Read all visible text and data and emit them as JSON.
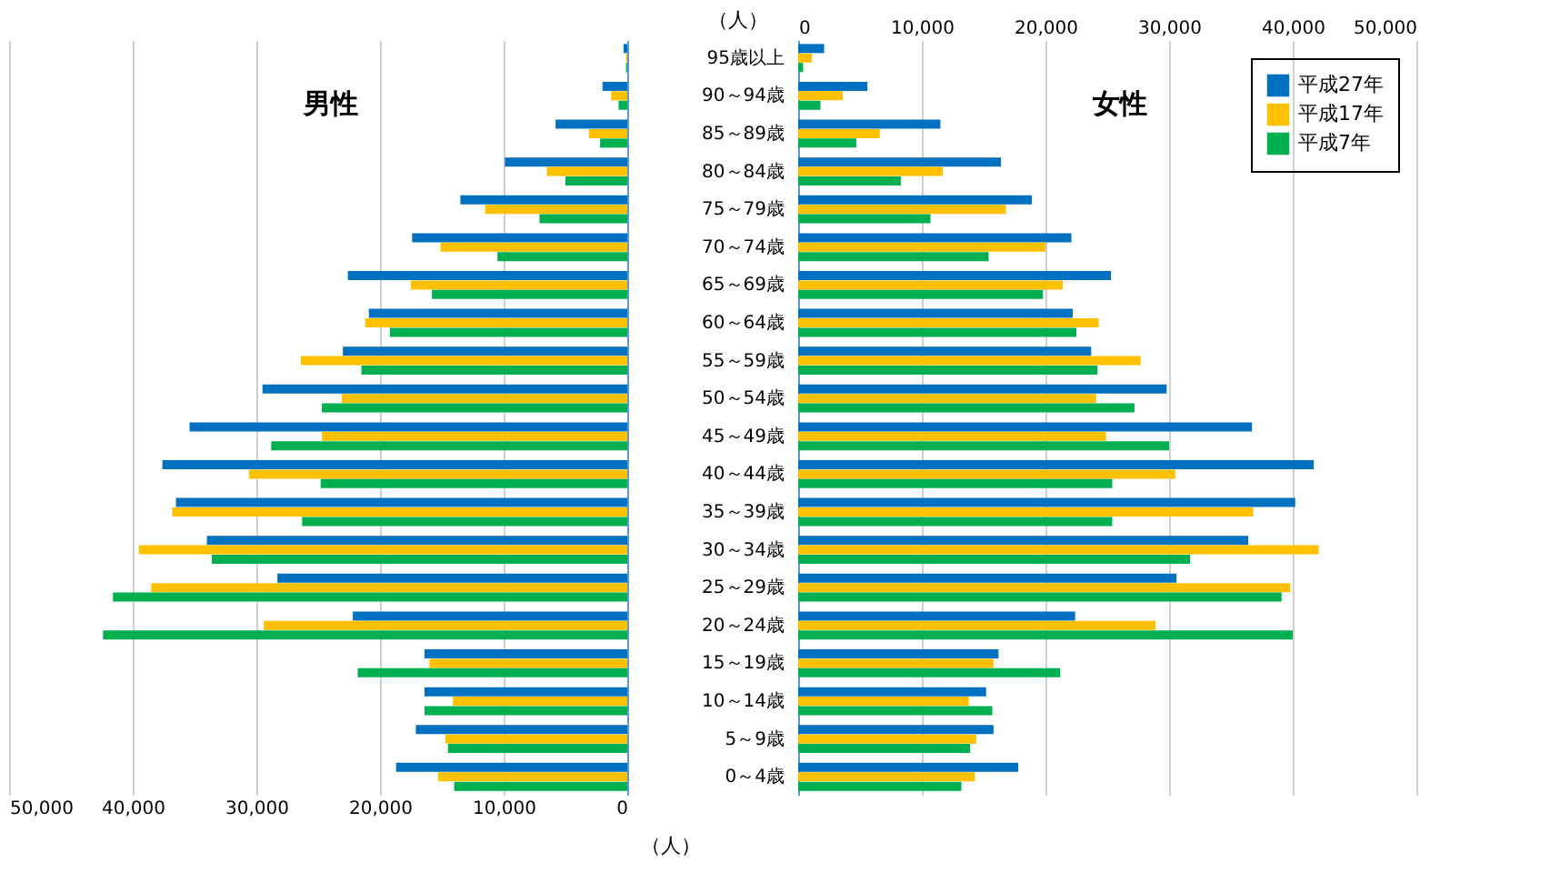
{
  "chart_data": [
    {
      "type": "bar",
      "orientation": "horizontal",
      "title": "男性",
      "xlabel": "（人）",
      "categories": [
        null,
        null,
        null,
        null,
        null,
        null,
        null,
        null,
        null,
        null,
        null,
        null,
        null,
        null,
        null,
        null,
        null,
        null,
        null,
        null
      ],
      "series": [
        {
          "color": "#0070c0",
          "values": [
            300,
            2000,
            5800,
            9900,
            13500,
            17400,
            22600,
            20900,
            23000,
            29500,
            35400,
            37600,
            36500,
            34000,
            28300,
            22200,
            16400,
            16400,
            17100,
            18700
          ]
        },
        {
          "color": "#ffc000",
          "values": [
            100,
            1300,
            3100,
            6500,
            11500,
            15100,
            17500,
            21200,
            26400,
            23100,
            24700,
            30600,
            36800,
            39500,
            38500,
            29400,
            16000,
            14100,
            14700,
            15300
          ]
        },
        {
          "color": "#00b050",
          "values": [
            100,
            700,
            2200,
            5000,
            7100,
            10500,
            15800,
            19200,
            21500,
            24700,
            28800,
            24800,
            26300,
            33600,
            41600,
            42400,
            21800,
            16400,
            14500,
            14000
          ]
        }
      ],
      "xlim": [
        50000,
        0
      ],
      "xticks": [
        {
          "value": 50000,
          "label": "50,000"
        },
        {
          "value": 40000,
          "label": "40,000"
        },
        {
          "value": 30000,
          "label": "30,000"
        },
        {
          "value": 20000,
          "label": "20,000"
        },
        {
          "value": 10000,
          "label": "10,000"
        },
        0
      ],
      "grid": "x",
      "tick_labels": "x"
    },
    {
      "type": "bar",
      "orientation": "horizontal",
      "title": "女性",
      "xlabel": "（人）",
      "categories": [
        "95歳以上",
        "90～94歳",
        "85～89歳",
        "80～84歳",
        "75～79歳",
        "70～74歳",
        "65～69歳",
        "60～64歳",
        "55～59歳",
        "50～54歳",
        "45～49歳",
        "40～44歳",
        "35～39歳",
        "30～34歳",
        "25～29歳",
        "20～24歳",
        "15～19歳",
        "10～14歳",
        "5～9歳",
        "0～4歳"
      ],
      "series": [
        {
          "name": "平成27年",
          "color": "#0070c0",
          "values": [
            2100,
            5600,
            11500,
            16400,
            18900,
            22100,
            25300,
            22200,
            23700,
            29800,
            36700,
            41700,
            40200,
            36400,
            30600,
            22400,
            16200,
            15200,
            15800,
            17800
          ]
        },
        {
          "name": "平成17年",
          "color": "#ffc000",
          "values": [
            1100,
            3600,
            6600,
            11700,
            16800,
            20000,
            21400,
            24300,
            27700,
            24100,
            24900,
            30500,
            36800,
            42100,
            39800,
            28900,
            15800,
            13800,
            14400,
            14300
          ]
        },
        {
          "name": "平成7年",
          "color": "#00b050",
          "values": [
            400,
            1800,
            4700,
            8300,
            10700,
            15400,
            19800,
            22500,
            24200,
            27200,
            30000,
            25400,
            25400,
            31700,
            39100,
            40000,
            21200,
            15700,
            13900,
            13200
          ]
        }
      ],
      "xlim": [
        0,
        50000
      ],
      "xticks": [
        0,
        {
          "value": 10000,
          "label": "10,000"
        },
        {
          "value": 20000,
          "label": "20,000"
        },
        {
          "value": 30000,
          "label": "30,000"
        },
        {
          "value": 40000,
          "label": "40,000"
        },
        {
          "value": 50000,
          "label": "50,000"
        }
      ],
      "grid": "x",
      "legend": "top right"
    }
  ]
}
